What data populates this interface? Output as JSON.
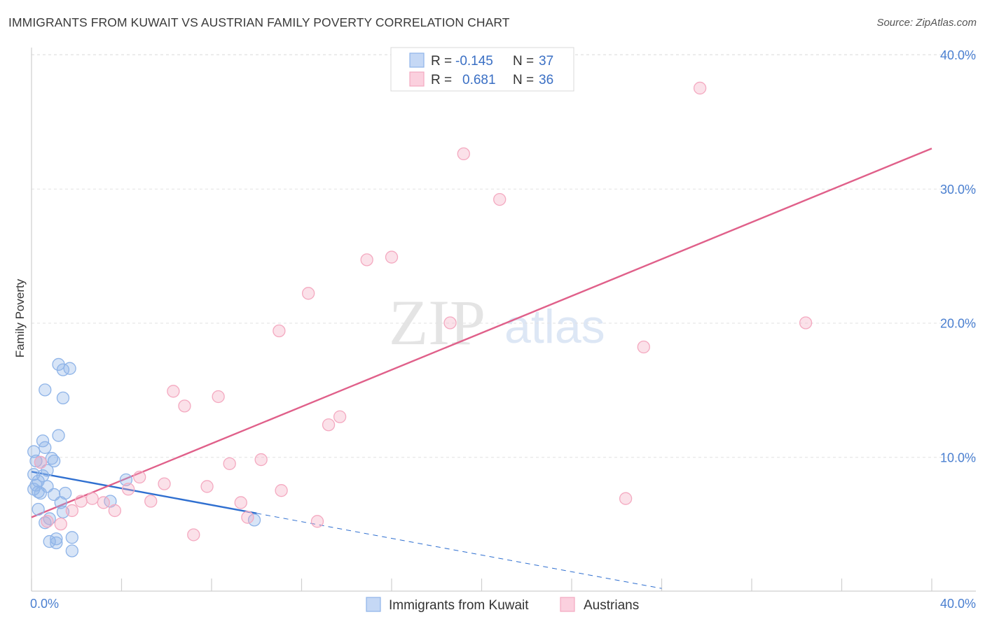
{
  "title": "IMMIGRANTS FROM KUWAIT VS AUSTRIAN FAMILY POVERTY CORRELATION CHART",
  "source": "Source: ZipAtlas.com",
  "watermark": {
    "zip": "ZIP",
    "atlas": "atlas"
  },
  "legend": {
    "r_label": "R =",
    "n_label": "N =",
    "series": [
      {
        "r": "-0.145",
        "n": "37"
      },
      {
        "r": "0.681",
        "n": "36"
      }
    ]
  },
  "chart_data": {
    "type": "scatter",
    "title": "IMMIGRANTS FROM KUWAIT VS AUSTRIAN FAMILY POVERTY CORRELATION CHART",
    "xlabel": "",
    "ylabel": "Family Poverty",
    "xlim": [
      0,
      40
    ],
    "ylim": [
      0,
      40
    ],
    "x_tick_labels": [
      "0.0%",
      "40.0%"
    ],
    "y_ticks": [
      10,
      20,
      30,
      40
    ],
    "y_tick_labels": [
      "10.0%",
      "20.0%",
      "30.0%",
      "40.0%"
    ],
    "series": [
      {
        "name": "Immigrants from Kuwait",
        "color": "#8fb4e8",
        "line_color": "#2f6fd0",
        "trend": {
          "x0": 0,
          "y0": 8.9,
          "x1": 10,
          "y1": 5.8,
          "dash_x1": 28,
          "dash_y1": 0.2
        },
        "points": [
          [
            0.1,
            10.4
          ],
          [
            0.2,
            9.7
          ],
          [
            0.1,
            8.7
          ],
          [
            0.2,
            7.9
          ],
          [
            0.1,
            7.6
          ],
          [
            0.3,
            7.4
          ],
          [
            0.4,
            7.3
          ],
          [
            0.3,
            6.1
          ],
          [
            0.5,
            11.2
          ],
          [
            0.6,
            10.7
          ],
          [
            0.4,
            9.6
          ],
          [
            0.7,
            9.0
          ],
          [
            0.9,
            9.9
          ],
          [
            1.0,
            9.7
          ],
          [
            0.5,
            8.6
          ],
          [
            0.7,
            7.8
          ],
          [
            1.0,
            7.2
          ],
          [
            1.3,
            6.6
          ],
          [
            1.5,
            7.3
          ],
          [
            1.4,
            5.9
          ],
          [
            0.8,
            5.4
          ],
          [
            0.6,
            5.1
          ],
          [
            0.8,
            3.7
          ],
          [
            1.1,
            3.9
          ],
          [
            1.1,
            3.6
          ],
          [
            1.8,
            4.0
          ],
          [
            1.8,
            3.0
          ],
          [
            0.6,
            15.0
          ],
          [
            1.4,
            14.4
          ],
          [
            1.2,
            16.9
          ],
          [
            1.4,
            16.5
          ],
          [
            1.7,
            16.6
          ],
          [
            1.2,
            11.6
          ],
          [
            4.2,
            8.3
          ],
          [
            3.5,
            6.7
          ],
          [
            9.9,
            5.3
          ],
          [
            0.3,
            8.2
          ]
        ]
      },
      {
        "name": "Austrians",
        "color": "#f4a9c0",
        "line_color": "#e0608a",
        "trend": {
          "x0": 0,
          "y0": 5.5,
          "x1": 40,
          "y1": 33.0
        },
        "points": [
          [
            0.4,
            9.6
          ],
          [
            0.7,
            5.2
          ],
          [
            1.3,
            5.0
          ],
          [
            1.8,
            6.0
          ],
          [
            2.2,
            6.7
          ],
          [
            2.7,
            6.9
          ],
          [
            3.2,
            6.6
          ],
          [
            3.7,
            6.0
          ],
          [
            4.3,
            7.6
          ],
          [
            4.8,
            8.5
          ],
          [
            5.3,
            6.7
          ],
          [
            5.9,
            8.0
          ],
          [
            6.3,
            14.9
          ],
          [
            6.8,
            13.8
          ],
          [
            7.2,
            4.2
          ],
          [
            7.8,
            7.8
          ],
          [
            8.3,
            14.5
          ],
          [
            8.8,
            9.5
          ],
          [
            9.3,
            6.6
          ],
          [
            9.6,
            5.5
          ],
          [
            10.2,
            9.8
          ],
          [
            11.1,
            7.5
          ],
          [
            11.0,
            19.4
          ],
          [
            12.3,
            22.2
          ],
          [
            12.7,
            5.2
          ],
          [
            13.2,
            12.4
          ],
          [
            13.7,
            13.0
          ],
          [
            14.9,
            24.7
          ],
          [
            16.0,
            24.9
          ],
          [
            18.6,
            20.0
          ],
          [
            19.2,
            32.6
          ],
          [
            20.8,
            29.2
          ],
          [
            26.4,
            6.9
          ],
          [
            27.2,
            18.2
          ],
          [
            29.7,
            37.5
          ],
          [
            34.4,
            20.0
          ]
        ]
      }
    ]
  }
}
